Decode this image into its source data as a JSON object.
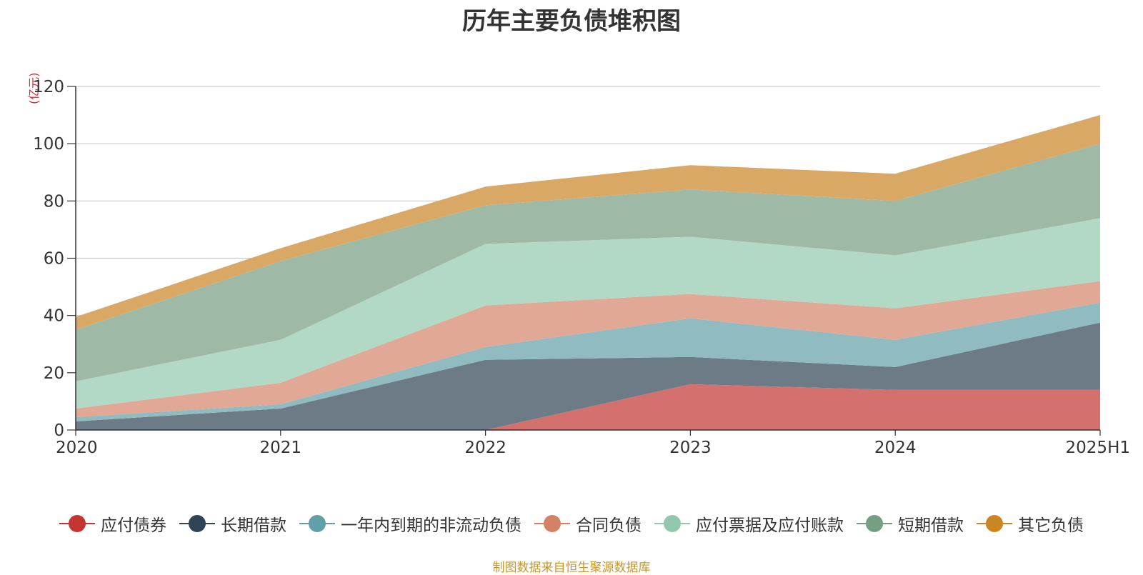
{
  "chart_data": {
    "type": "area",
    "stacked": true,
    "title": "历年主要负债堆积图",
    "unit_label": "(亿元)",
    "categories": [
      "2020",
      "2021",
      "2022",
      "2023",
      "2024",
      "2025H1"
    ],
    "ylim": [
      0,
      120
    ],
    "yticks": [
      "0",
      "20",
      "40",
      "60",
      "80",
      "100",
      "120"
    ],
    "grid": true,
    "legend_position": "bottom",
    "series": [
      {
        "name": "应付债券",
        "color": "#c23531",
        "area_color": "#d4706e",
        "values": [
          0,
          0,
          0,
          16,
          14,
          14
        ]
      },
      {
        "name": "长期借款",
        "color": "#2f4554",
        "area_color": "#6d7b86",
        "values": [
          3,
          7.5,
          24.5,
          9.5,
          8,
          23.5
        ]
      },
      {
        "name": "一年内到期的非流动负债",
        "color": "#61a0a8",
        "area_color": "#90bbc1",
        "values": [
          1.5,
          1.5,
          4.5,
          13.5,
          9.5,
          7
        ]
      },
      {
        "name": "合同负债",
        "color": "#d48265",
        "area_color": "#e0a895",
        "values": [
          3,
          7.5,
          14.5,
          8.5,
          11,
          7.5
        ]
      },
      {
        "name": "应付票据及应付账款",
        "color": "#91c7ae",
        "area_color": "#b2d8c6",
        "values": [
          9.5,
          15,
          21.5,
          20,
          18.5,
          22
        ]
      },
      {
        "name": "短期借款",
        "color": "#749f83",
        "area_color": "#9eb9a6",
        "values": [
          18,
          27.5,
          13.5,
          16.5,
          19,
          26
        ]
      },
      {
        "name": "其它负债",
        "color": "#ca8622",
        "area_color": "#d8a864",
        "values": [
          4.5,
          4.5,
          6.5,
          8.5,
          9.5,
          10
        ]
      }
    ]
  },
  "source_note": "制图数据来自恒生聚源数据库"
}
